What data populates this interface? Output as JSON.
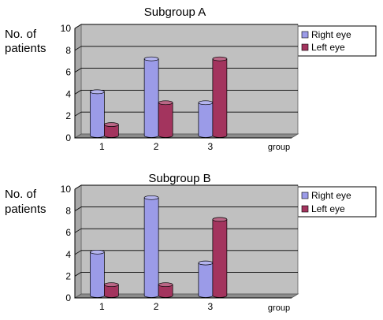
{
  "chart_data": [
    {
      "type": "bar",
      "title": "Subgroup A",
      "ylabel": "No. of patients",
      "ylabel_lines": [
        "No. of",
        "patients"
      ],
      "xlabel": "group",
      "categories": [
        "1",
        "2",
        "3",
        ""
      ],
      "ylim": [
        0,
        10
      ],
      "yticks": [
        0,
        2,
        4,
        6,
        8,
        10
      ],
      "series": [
        {
          "name": "Right eye",
          "values": [
            4,
            7,
            3,
            null
          ],
          "color": "#9b9be8"
        },
        {
          "name": "Left eye",
          "values": [
            1,
            3,
            7,
            null
          ],
          "color": "#a3345e"
        }
      ],
      "legend_position": "right",
      "grid": true,
      "background": "#c0c0c0"
    },
    {
      "type": "bar",
      "title": "Subgroup B",
      "ylabel": "No. of patients",
      "ylabel_lines": [
        "No. of",
        "patients"
      ],
      "xlabel": "group",
      "categories": [
        "1",
        "2",
        "3",
        ""
      ],
      "ylim": [
        0,
        10
      ],
      "yticks": [
        0,
        2,
        4,
        6,
        8,
        10
      ],
      "series": [
        {
          "name": "Right eye",
          "values": [
            4,
            9,
            3,
            null
          ],
          "color": "#9b9be8"
        },
        {
          "name": "Left eye",
          "values": [
            1,
            1,
            7,
            null
          ],
          "color": "#a3345e"
        }
      ],
      "legend_position": "right",
      "grid": true,
      "background": "#c0c0c0"
    }
  ]
}
